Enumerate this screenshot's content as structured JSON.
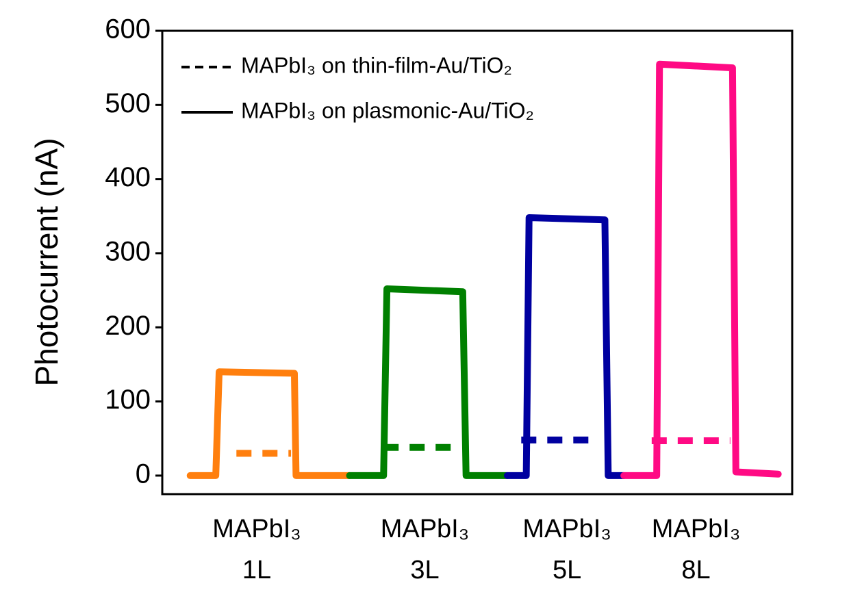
{
  "chart_data": {
    "type": "line",
    "y_label": "Photocurrent (nA)",
    "ylim": [
      -25,
      600
    ],
    "yticks": [
      0,
      100,
      200,
      300,
      400,
      500,
      600
    ],
    "xlim": [
      -0.5,
      10.8
    ],
    "categories": [
      [
        "MAPbI₃",
        "1L"
      ],
      [
        "MAPbI₃",
        "3L"
      ],
      [
        "MAPbI₃",
        "5L"
      ],
      [
        "MAPbI₃",
        "8L"
      ]
    ],
    "legend": [
      {
        "name": "MAPbI₃ on thin-film-Au/TiO₂",
        "dash": true
      },
      {
        "name": "MAPbI₃ on plasmonic-Au/TiO₂",
        "dash": false
      }
    ],
    "series": [
      {
        "color": "#ff7f0e",
        "dash": true,
        "x": [
          0.83,
          1.81
        ],
        "values": [
          30,
          30
        ]
      },
      {
        "color": "#ff7f0e",
        "dash": false,
        "x": [
          0,
          0.46,
          0.52,
          1.87,
          1.9,
          2.86
        ],
        "values": [
          0,
          0,
          140,
          138,
          0,
          0
        ]
      },
      {
        "color": "#008000",
        "dash": true,
        "x": [
          3.47,
          4.8
        ],
        "values": [
          38,
          38
        ]
      },
      {
        "color": "#008000",
        "dash": false,
        "x": [
          2.86,
          3.47,
          3.53,
          4.89,
          4.95,
          5.69
        ],
        "values": [
          0,
          0,
          252,
          248,
          0,
          0
        ]
      },
      {
        "color": "#0000a0",
        "dash": true,
        "x": [
          5.94,
          7.2
        ],
        "values": [
          48,
          48
        ]
      },
      {
        "color": "#0000a0",
        "dash": false,
        "x": [
          5.69,
          6.03,
          6.08,
          7.44,
          7.5,
          7.78
        ],
        "values": [
          0,
          0,
          348,
          345,
          0,
          0
        ]
      },
      {
        "color": "#ff0a84",
        "dash": true,
        "x": [
          8.28,
          9.69
        ],
        "values": [
          47,
          47
        ]
      },
      {
        "color": "#ff0a84",
        "dash": false,
        "x": [
          7.78,
          8.37,
          8.42,
          9.73,
          9.79,
          10.55
        ],
        "values": [
          0,
          0,
          555,
          550,
          5,
          2
        ]
      }
    ]
  }
}
